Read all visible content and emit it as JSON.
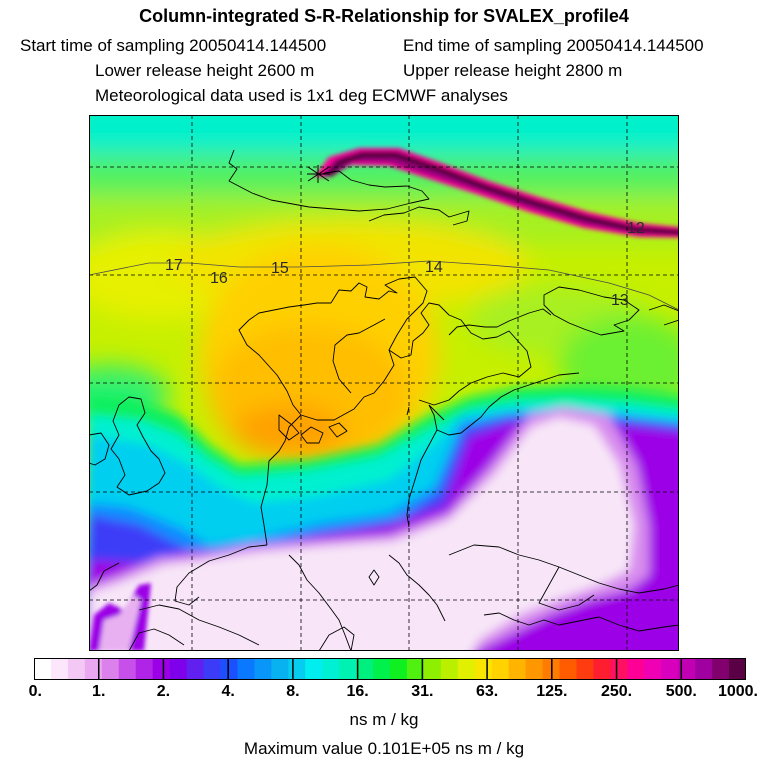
{
  "header": {
    "title": "Column-integrated S-R-Relationship for SVALEX_profile4",
    "start_time": "Start time of sampling 20050414.144500",
    "end_time": "End time of sampling 20050414.144500",
    "lower_height": "Lower release height 2600 m",
    "upper_height": "Upper release height 2800 m",
    "met_data": "Meteorological data used is 1x1 deg ECMWF analyses"
  },
  "map": {
    "day_labels": [
      "17",
      "16",
      "15",
      "14",
      "13",
      "12"
    ]
  },
  "colorbar": {
    "tick_labels": [
      "0.",
      "1.",
      "2.",
      "4.",
      "8.",
      "16.",
      "31.",
      "63.",
      "125.",
      "250.",
      "500.",
      "1000."
    ],
    "colors": [
      "#ffffff",
      "#fbe6fb",
      "#f4c8f5",
      "#eaa8f0",
      "#dc80ec",
      "#c850ea",
      "#b024e8",
      "#9c00e6",
      "#7f00ea",
      "#6020f0",
      "#3c3cf8",
      "#1c50ff",
      "#0a78ff",
      "#0896f8",
      "#08b2f0",
      "#06ccf0",
      "#00eef0",
      "#00f0d4",
      "#00f2b2",
      "#00f080",
      "#00f04c",
      "#10f020",
      "#50f010",
      "#8ef000",
      "#baf000",
      "#e0f000",
      "#f8e600",
      "#ffd200",
      "#ffb400",
      "#ff9800",
      "#ff7c00",
      "#ff5c00",
      "#ff3c10",
      "#ff1e30",
      "#ff1060",
      "#ff0096",
      "#f000b4",
      "#d800bc",
      "#c000b2",
      "#a000a0",
      "#82006e",
      "#5a0044"
    ],
    "units": "ns m / kg"
  },
  "footer": {
    "max_value": "Maximum value  0.101E+05 ns m / kg"
  }
}
